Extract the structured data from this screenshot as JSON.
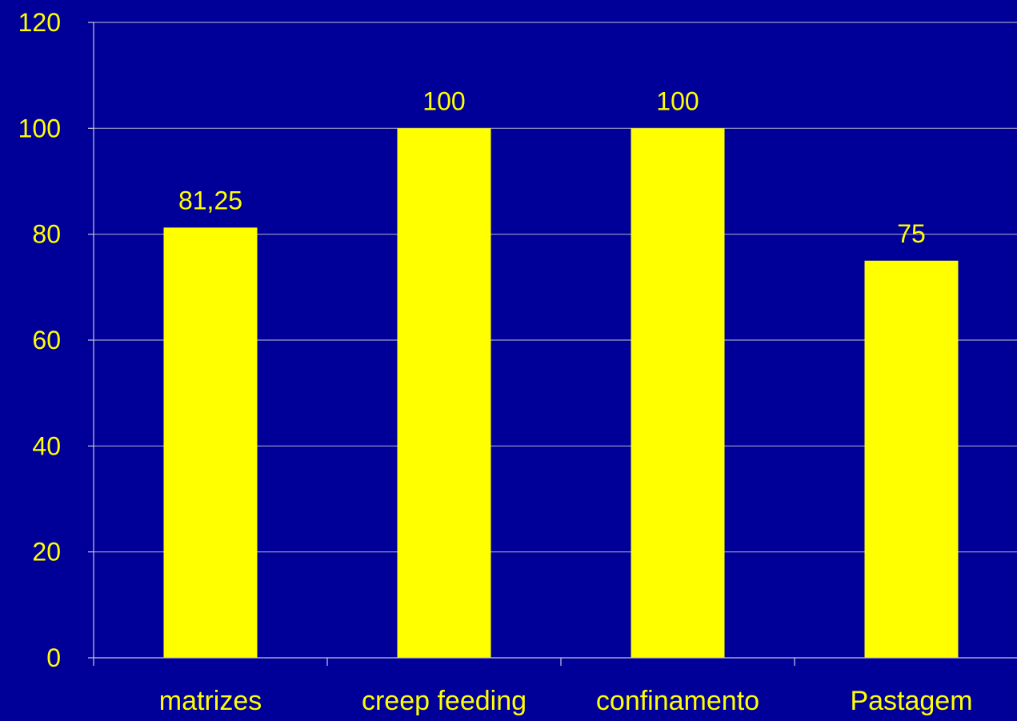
{
  "colors": {
    "background": "#000099",
    "bar": "#FFFF00",
    "text": "#FFFF00",
    "grid": "#A0A0C8",
    "axis": "#C8C8DC"
  },
  "chart_data": {
    "type": "bar",
    "categories": [
      "matrizes",
      "creep feeding",
      "confinamento",
      "Pastagem"
    ],
    "values": [
      81.25,
      100,
      100,
      75
    ],
    "data_labels": [
      "81,25",
      "100",
      "100",
      "75"
    ],
    "title": "",
    "xlabel": "",
    "ylabel": "",
    "ylim": [
      0,
      120
    ],
    "yticks": [
      0,
      20,
      40,
      60,
      80,
      100,
      120
    ],
    "ytick_labels": [
      "0",
      "20",
      "40",
      "60",
      "80",
      "100",
      "120"
    ],
    "grid": true,
    "legend": "none"
  }
}
